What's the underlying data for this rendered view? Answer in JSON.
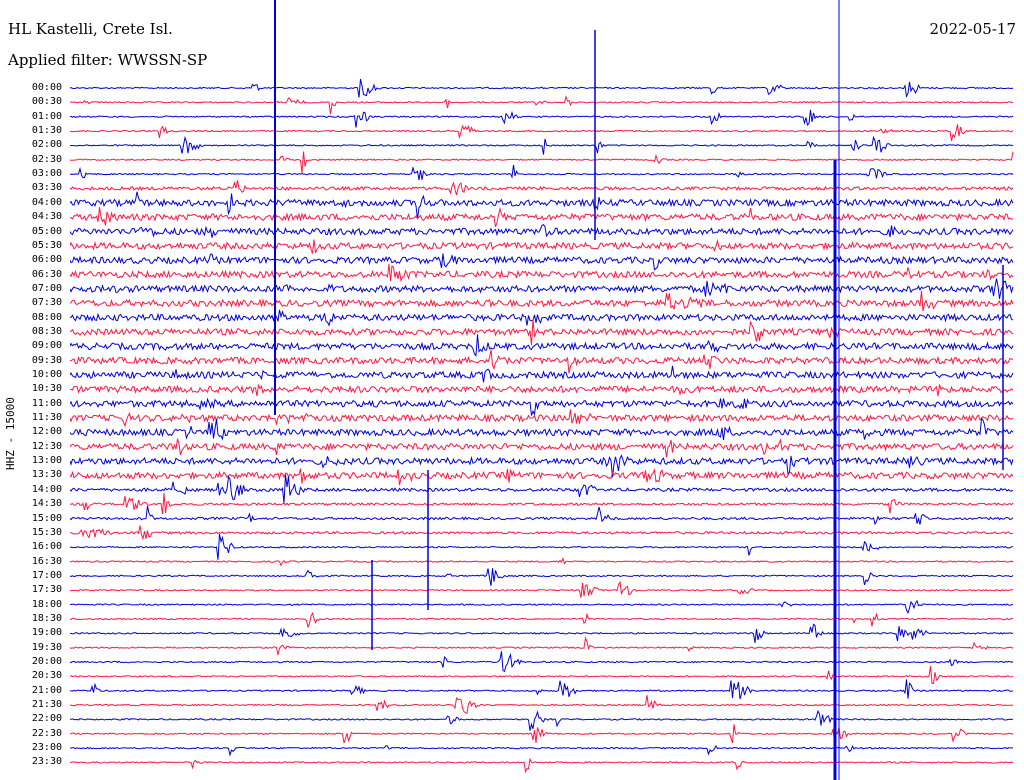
{
  "header": {
    "station": "HL Kastelli, Crete Isl.",
    "filter": "Applied filter: WWSSN-SP",
    "date": "2022-05-17"
  },
  "channel_label": "HHZ - 15000",
  "trace_colors": {
    "even": "#0000d8",
    "odd": "#ff1844"
  },
  "rows": [
    {
      "t": "00:00"
    },
    {
      "t": "00:30"
    },
    {
      "t": "01:00"
    },
    {
      "t": "01:30"
    },
    {
      "t": "02:00"
    },
    {
      "t": "02:30"
    },
    {
      "t": "03:00"
    },
    {
      "t": "03:30"
    },
    {
      "t": "04:00"
    },
    {
      "t": "04:30"
    },
    {
      "t": "05:00"
    },
    {
      "t": "05:30"
    },
    {
      "t": "06:00"
    },
    {
      "t": "06:30"
    },
    {
      "t": "07:00"
    },
    {
      "t": "07:30"
    },
    {
      "t": "08:00"
    },
    {
      "t": "08:30"
    },
    {
      "t": "09:00"
    },
    {
      "t": "09:30"
    },
    {
      "t": "10:00"
    },
    {
      "t": "10:30"
    },
    {
      "t": "11:00"
    },
    {
      "t": "11:30"
    },
    {
      "t": "12:00"
    },
    {
      "t": "12:30"
    },
    {
      "t": "13:00"
    },
    {
      "t": "13:30"
    },
    {
      "t": "14:00"
    },
    {
      "t": "14:30"
    },
    {
      "t": "15:00"
    },
    {
      "t": "15:30"
    },
    {
      "t": "16:00"
    },
    {
      "t": "16:30"
    },
    {
      "t": "17:00"
    },
    {
      "t": "17:30"
    },
    {
      "t": "18:00"
    },
    {
      "t": "18:30"
    },
    {
      "t": "19:00"
    },
    {
      "t": "19:30"
    },
    {
      "t": "20:00"
    },
    {
      "t": "20:30"
    },
    {
      "t": "21:00"
    },
    {
      "t": "21:30"
    },
    {
      "t": "22:00"
    },
    {
      "t": "22:30"
    },
    {
      "t": "23:00"
    },
    {
      "t": "23:30"
    }
  ]
}
